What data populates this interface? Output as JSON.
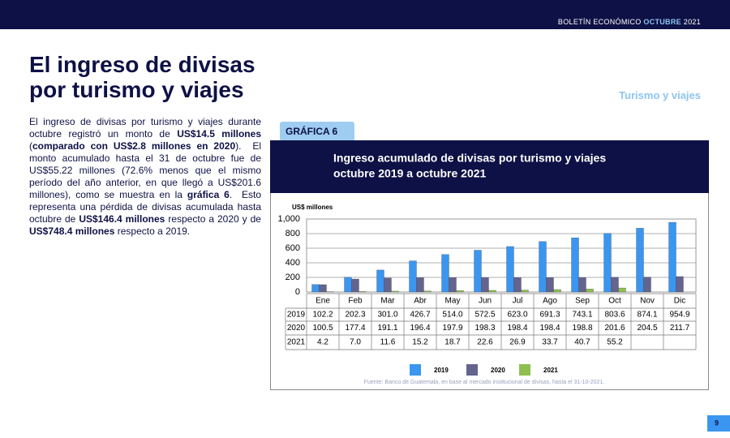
{
  "header": {
    "text": "BOLETÍN ECONÓMICO",
    "month": "OCTUBRE",
    "year": "2021"
  },
  "title": [
    "El ingreso de divisas",
    "por turismo y viajes"
  ],
  "section": "Turismo y viajes",
  "body": [
    {
      "text": "El ingreso de divisas por turismo y viajes durante octubre registró un monto de ",
      "bold": false
    },
    {
      "text": "US$14.5 millones",
      "bold": true
    },
    {
      "text": " (",
      "bold": false
    },
    {
      "text": "comparado con US$2.8 millones en 2020",
      "bold": true
    },
    {
      "text": ").  El monto acumulado hasta el 31 de octubre fue de US$55.22 millones (72.6% menos que el mismo período del año anterior, en que llegó a US$201.6 millones), como se muestra en la ",
      "bold": false
    },
    {
      "text": "gráfica 6",
      "bold": true
    },
    {
      "text": ".  Esto representa una pérdida de divisas acumulada hasta octubre de ",
      "bold": false
    },
    {
      "text": "US$146.4 millones",
      "bold": true
    },
    {
      "text": " respecto a 2020 y de ",
      "bold": false
    },
    {
      "text": "US$748.4 millones",
      "bold": true
    },
    {
      "text": " respecto a 2019.",
      "bold": false
    }
  ],
  "figure_label": "GRÁFICA 6",
  "chart_data": {
    "type": "bar",
    "title": "Ingreso acumulado de divisas por turismo y viajes",
    "subtitle": "octubre 2019 a octubre 2021",
    "y_label": "US$ millones",
    "categories": [
      "Ene",
      "Feb",
      "Mar",
      "Abr",
      "May",
      "Jun",
      "Jul",
      "Ago",
      "Sep",
      "Oct",
      "Nov",
      "Dic"
    ],
    "series": [
      {
        "name": "2019",
        "color": "#3a96f0",
        "values": [
          102.2,
          202.3,
          301.0,
          426.7,
          514.0,
          572.5,
          623.0,
          691.3,
          743.1,
          803.6,
          874.1,
          954.9
        ],
        "value_labels": [
          "102.2",
          "202.3",
          "301.0",
          "426.7",
          "514.0",
          "572.5",
          "623.0",
          "691.3",
          "743.1",
          "803.6",
          "874.1",
          "954.9"
        ]
      },
      {
        "name": "2020",
        "color": "#64648f",
        "values": [
          100.5,
          177.4,
          191.1,
          196.4,
          197.9,
          198.3,
          198.4,
          198.4,
          198.8,
          201.6,
          204.5,
          211.7
        ],
        "value_labels": [
          "100.5",
          "177.4",
          "191.1",
          "196.4",
          "197.9",
          "198.3",
          "198.4",
          "198.4",
          "198.8",
          "201.6",
          "204.5",
          "211.7"
        ]
      },
      {
        "name": "2021",
        "color": "#8fbf4f",
        "values": [
          4.2,
          7.0,
          11.6,
          15.2,
          18.7,
          22.6,
          26.9,
          33.7,
          40.7,
          55.2,
          null,
          null
        ],
        "value_labels": [
          "4.2",
          "7.0",
          "11.6",
          "15.2",
          "18.7",
          "22.6",
          "26.9",
          "33.7",
          "40.7",
          "55.2",
          null,
          null
        ]
      }
    ],
    "ylim": [
      0,
      1000
    ],
    "yticks": [
      0,
      200,
      400,
      600,
      800,
      {
        "value": 1000,
        "label": "1,000"
      }
    ],
    "grid": true,
    "source": "Fuente: Banco de Guatemala, en base al mercado institucional de divisas, hasta el 31-10-2021."
  },
  "page_number": 9
}
